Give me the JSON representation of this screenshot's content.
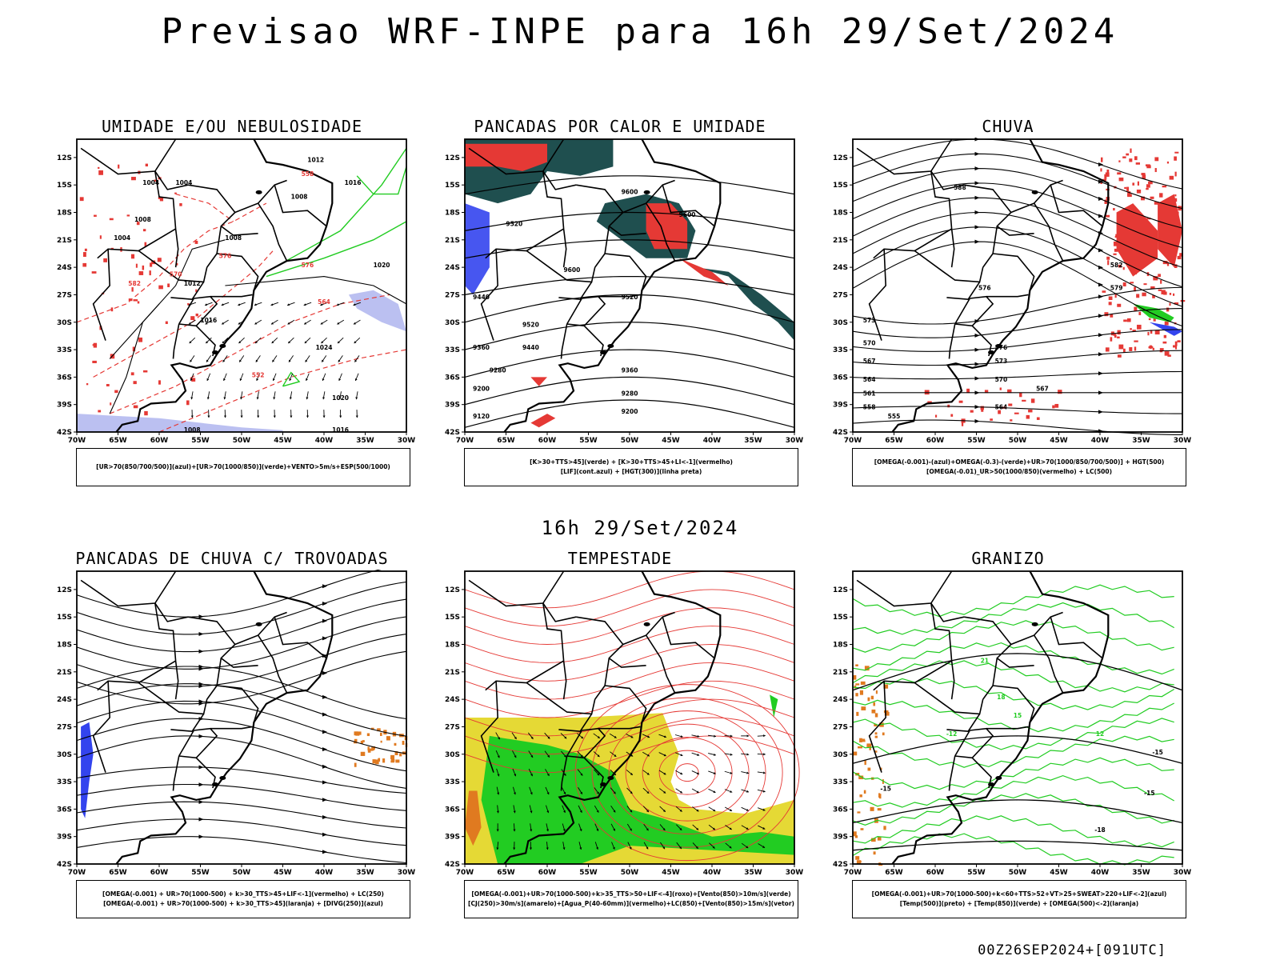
{
  "title": "Previsao WRF-INPE  para 16h 29/Set/2024",
  "subtitle": "16h 29/Set/2024",
  "footer": "00Z26SEP2024+[091UTC]",
  "colors": {
    "red": "#e53935",
    "blue": "#3344ee",
    "green": "#22cc22",
    "black": "#000000",
    "darkteal": "#1f4f4f",
    "yellow": "#e5d935",
    "orange": "#e07a20",
    "lavender": "#aab0ee"
  },
  "axes": {
    "lat_labels": [
      "12S",
      "15S",
      "18S",
      "21S",
      "24S",
      "27S",
      "30S",
      "33S",
      "36S",
      "39S",
      "42S"
    ],
    "lon_labels": [
      "70W",
      "65W",
      "60W",
      "55W",
      "50W",
      "45W",
      "40W",
      "35W",
      "30W"
    ]
  },
  "panels": [
    {
      "title": "UMIDADE E/OU NEBULOSIDADE",
      "legend": [
        "[UR>70(850/700/500)](azul)+[UR>70(1000/850)](verde)+VENTO>5m/s+ESP(500/1000)"
      ],
      "labels": [
        "1012",
        "1008",
        "1016",
        "1004",
        "1004",
        "1008",
        "1004",
        "1008",
        "1020",
        "1012",
        "1016",
        "1024",
        "1020",
        "1016",
        "1008",
        "552",
        "564",
        "558",
        "570",
        "576",
        "582",
        "576"
      ]
    },
    {
      "title": "PANCADAS POR CALOR E UMIDADE",
      "legend": [
        "[K>30+TTS>45](verde) + [K>30+TTS>45+LI<-1](vermelho)",
        "[LIF](cont.azul) + [HGT(300)](linha preta)"
      ],
      "labels": [
        "9600",
        "9600",
        "9520",
        "9600",
        "9520",
        "9440",
        "9520",
        "9440",
        "9360",
        "9280",
        "9200",
        "9360",
        "9280",
        "9200",
        "9120"
      ]
    },
    {
      "title": "CHUVA",
      "legend": [
        "[OMEGA(-0.001)-(azul)+OMEGA(-0.3)-(verde)+UR>70(1000/850/700/500)] + HGT(500)",
        "[OMEGA(-0.01)_UR>50(1000/850)(vermelho) + LC(500)"
      ],
      "labels": [
        "588",
        "582",
        "579",
        "576",
        "573",
        "570",
        "567",
        "564",
        "561",
        "558",
        "555",
        "564",
        "567",
        "570",
        "573",
        "576"
      ]
    },
    {
      "title": "PANCADAS DE CHUVA C/ TROVOADAS",
      "legend": [
        "[OMEGA(-0.001) + UR>70(1000-500) + k>30_TTS>45+LIF<-1](vermelho) + LC(250)",
        "[OMEGA(-0.001) + UR>70(1000-500) + k>30_TTS>45](laranja) + [DIVG(250)](azul)"
      ],
      "labels": []
    },
    {
      "title": "TEMPESTADE",
      "legend": [
        "[OMEGA(-0.001)+UR>70(1000-500)+k>35_TTS>50+LIF<-4](roxo)+[Vento(850)>10m/s](verde)",
        "[CJ(250)>30m/s](amarelo)+[Agua_P(40-60mm)](vermelho)+LC(850)+[Vento(850)>15m/s](vetor)"
      ],
      "labels": []
    },
    {
      "title": "GRANIZO",
      "legend": [
        "[OMEGA(-0.001)+UR>70(1000-500)+k<60+TTS>52+VT>25+SWEAT>220+LIF<-2](azul)",
        "[Temp(500)](preto) + [Temp(850)](verde) + [OMEGA(500)<-2](laranja)"
      ],
      "labels": [
        "-15",
        "-15",
        "-18",
        "-15",
        "-12",
        "12",
        "15",
        "21",
        "18"
      ]
    }
  ]
}
